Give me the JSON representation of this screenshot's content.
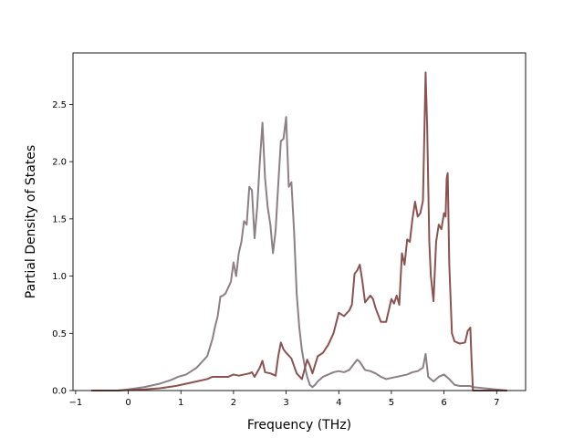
{
  "chart_data": {
    "type": "line",
    "title": "",
    "xlabel": "Frequency (THz)",
    "ylabel": "Partial Density of States",
    "xlim": [
      -1.05,
      7.55
    ],
    "ylim": [
      0.0,
      2.95
    ],
    "xticks": [
      -1,
      0,
      1,
      2,
      3,
      4,
      5,
      6,
      7
    ],
    "yticks": [
      0.0,
      0.5,
      1.0,
      1.5,
      2.0,
      2.5
    ],
    "ytick_labels": [
      "0.0",
      "0.5",
      "1.0",
      "1.5",
      "2.0",
      "2.5"
    ],
    "grid": false,
    "legend": "none",
    "series": [
      {
        "color": "#8c7f86",
        "x": [
          -0.7,
          -0.2,
          0.0,
          0.3,
          0.6,
          0.8,
          0.95,
          1.1,
          1.3,
          1.5,
          1.6,
          1.65,
          1.7,
          1.75,
          1.8,
          1.85,
          1.9,
          1.95,
          2.0,
          2.05,
          2.1,
          2.15,
          2.2,
          2.25,
          2.3,
          2.35,
          2.4,
          2.45,
          2.5,
          2.55,
          2.6,
          2.65,
          2.7,
          2.75,
          2.8,
          2.85,
          2.9,
          2.95,
          3.0,
          3.05,
          3.1,
          3.15,
          3.2,
          3.25,
          3.3,
          3.35,
          3.4,
          3.45,
          3.5,
          3.55,
          3.6,
          3.7,
          3.8,
          3.9,
          4.0,
          4.1,
          4.2,
          4.3,
          4.35,
          4.4,
          4.5,
          4.6,
          4.7,
          4.8,
          4.9,
          5.0,
          5.1,
          5.2,
          5.3,
          5.4,
          5.5,
          5.6,
          5.65,
          5.7,
          5.75,
          5.8,
          5.9,
          6.0,
          6.1,
          6.2,
          6.3,
          6.4,
          6.5,
          6.55,
          7.2
        ],
        "y": [
          0.0,
          0.0,
          0.01,
          0.03,
          0.06,
          0.09,
          0.12,
          0.14,
          0.2,
          0.3,
          0.45,
          0.56,
          0.65,
          0.82,
          0.83,
          0.85,
          0.9,
          0.95,
          1.12,
          1.0,
          1.2,
          1.3,
          1.48,
          1.45,
          1.78,
          1.75,
          1.33,
          1.6,
          2.0,
          2.34,
          1.85,
          1.6,
          1.45,
          1.2,
          1.4,
          1.8,
          2.18,
          2.2,
          2.39,
          1.78,
          1.82,
          1.4,
          0.85,
          0.55,
          0.35,
          0.22,
          0.12,
          0.05,
          0.03,
          0.05,
          0.08,
          0.12,
          0.14,
          0.16,
          0.17,
          0.16,
          0.18,
          0.24,
          0.27,
          0.25,
          0.18,
          0.17,
          0.15,
          0.12,
          0.1,
          0.11,
          0.12,
          0.13,
          0.14,
          0.16,
          0.17,
          0.2,
          0.32,
          0.12,
          0.1,
          0.08,
          0.12,
          0.14,
          0.1,
          0.05,
          0.04,
          0.04,
          0.04,
          0.03,
          0.0
        ]
      },
      {
        "color": "#8b5350",
        "x": [
          -0.7,
          -0.2,
          0.0,
          0.3,
          0.6,
          0.9,
          1.1,
          1.3,
          1.5,
          1.6,
          1.7,
          1.8,
          1.9,
          2.0,
          2.1,
          2.2,
          2.3,
          2.35,
          2.4,
          2.5,
          2.55,
          2.6,
          2.7,
          2.8,
          2.85,
          2.9,
          2.95,
          3.0,
          3.1,
          3.2,
          3.3,
          3.4,
          3.45,
          3.5,
          3.6,
          3.7,
          3.8,
          3.9,
          4.0,
          4.1,
          4.2,
          4.25,
          4.3,
          4.35,
          4.4,
          4.45,
          4.5,
          4.55,
          4.6,
          4.65,
          4.7,
          4.8,
          4.9,
          5.0,
          5.05,
          5.1,
          5.15,
          5.2,
          5.25,
          5.3,
          5.35,
          5.4,
          5.45,
          5.5,
          5.55,
          5.6,
          5.65,
          5.68,
          5.72,
          5.75,
          5.8,
          5.85,
          5.9,
          5.95,
          6.0,
          6.03,
          6.05,
          6.07,
          6.1,
          6.15,
          6.2,
          6.3,
          6.4,
          6.45,
          6.5,
          6.52,
          6.55,
          6.6,
          7.2
        ],
        "y": [
          0.0,
          0.0,
          0.005,
          0.01,
          0.02,
          0.04,
          0.06,
          0.08,
          0.1,
          0.12,
          0.12,
          0.12,
          0.12,
          0.14,
          0.13,
          0.14,
          0.15,
          0.16,
          0.12,
          0.2,
          0.26,
          0.16,
          0.15,
          0.13,
          0.3,
          0.42,
          0.36,
          0.33,
          0.28,
          0.15,
          0.1,
          0.27,
          0.22,
          0.15,
          0.3,
          0.33,
          0.4,
          0.5,
          0.68,
          0.65,
          0.7,
          0.75,
          1.02,
          1.05,
          1.1,
          0.95,
          0.77,
          0.8,
          0.83,
          0.8,
          0.72,
          0.6,
          0.6,
          0.8,
          0.76,
          0.83,
          0.75,
          1.2,
          1.1,
          1.32,
          1.3,
          1.5,
          1.65,
          1.52,
          1.55,
          1.66,
          2.78,
          2.3,
          1.3,
          1.0,
          0.78,
          1.3,
          1.45,
          1.41,
          1.55,
          1.52,
          1.85,
          1.9,
          1.1,
          0.5,
          0.43,
          0.41,
          0.42,
          0.52,
          0.55,
          0.3,
          0.0,
          0.0,
          0.0
        ]
      }
    ]
  }
}
